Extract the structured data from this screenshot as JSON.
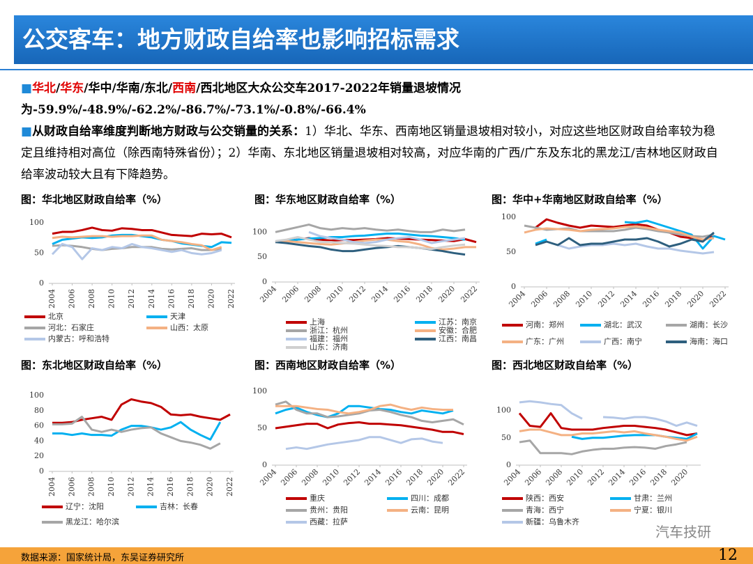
{
  "header": {
    "title": "公交客车：地方财政自给率也影响招标需求"
  },
  "bullets": [
    {
      "segments": [
        {
          "text": "华北",
          "color": "#e00000"
        },
        {
          "text": "/",
          "color": "#000000"
        },
        {
          "text": "华东",
          "color": "#e00000"
        },
        {
          "text": "/华中/华南/东北/",
          "color": "#000000"
        },
        {
          "text": "西南",
          "color": "#e00000"
        },
        {
          "text": "/西北地区大众公交车2017-2022年销量退坡情况为-59.9%/-48.9%/-62.2%/-86.7%/-73.1%/-0.8%/-66.4%",
          "color": "#000000"
        }
      ]
    },
    {
      "lead": "从财政自给率维度判断地方财政与公交销量的关系：",
      "text": "1）华北、华东、西南地区销量退坡相对较小，对应这些地区财政自给率较为稳定且维持相对高位（除西南特殊省份）；2）华南、东北地区销量退坡相对较高，对应华南的广西/广东及东北的黑龙江/吉林地区财政自给率波动较大且有下降趋势。"
    }
  ],
  "chart_data": [
    {
      "type": "line",
      "title": "图：华北地区财政自给率（%）",
      "x": [
        2004,
        2005,
        2006,
        2007,
        2008,
        2009,
        2010,
        2011,
        2012,
        2013,
        2014,
        2015,
        2016,
        2017,
        2018,
        2019,
        2020,
        2021,
        2022
      ],
      "xlim": [
        2004,
        2022
      ],
      "xticks": [
        2004,
        2006,
        2008,
        2010,
        2012,
        2014,
        2016,
        2018,
        2020,
        2022
      ],
      "ylim": [
        0,
        100
      ],
      "yticks": [
        0,
        50,
        100
      ],
      "series": [
        {
          "name": "北京",
          "color": "#c00000",
          "values": [
            82,
            85,
            85,
            88,
            92,
            88,
            87,
            91,
            90,
            88,
            88,
            84,
            80,
            79,
            78,
            82,
            81,
            82,
            76
          ]
        },
        {
          "name": "天津",
          "color": "#00b0f0",
          "values": [
            65,
            72,
            74,
            76,
            75,
            76,
            79,
            80,
            80,
            78,
            76,
            72,
            70,
            66,
            64,
            62,
            60,
            68,
            67
          ]
        },
        {
          "name": "河北：石家庄",
          "color": "#a6a6a6",
          "values": [
            62,
            63,
            62,
            60,
            57,
            55,
            57,
            58,
            60,
            60,
            60,
            57,
            56,
            57,
            58,
            55,
            55,
            57,
            null
          ]
        },
        {
          "name": "山西：太原",
          "color": "#f4b183",
          "values": [
            75,
            77,
            76,
            77,
            78,
            78,
            77,
            78,
            78,
            79,
            79,
            72,
            70,
            68,
            65,
            63,
            55,
            60,
            null
          ]
        },
        {
          "name": "内蒙古：呼和浩特",
          "color": "#b4c7e7",
          "values": [
            48,
            65,
            60,
            40,
            58,
            55,
            60,
            58,
            65,
            60,
            58,
            55,
            52,
            55,
            50,
            48,
            50,
            55,
            null
          ]
        }
      ]
    },
    {
      "type": "line",
      "title": "图：华东地区财政自给率（%）",
      "x": [
        2004,
        2005,
        2006,
        2007,
        2008,
        2009,
        2010,
        2011,
        2012,
        2013,
        2014,
        2015,
        2016,
        2017,
        2018,
        2019,
        2020,
        2021,
        2022
      ],
      "xlim": [
        2004,
        2022
      ],
      "xticks": [
        2004,
        2006,
        2008,
        2010,
        2012,
        2014,
        2016,
        2018,
        2020,
        2022
      ],
      "ylim": [
        0,
        120
      ],
      "yticks": [
        0,
        50,
        100
      ],
      "series": [
        {
          "name": "上海",
          "color": "#c00000",
          "values": [
            80,
            83,
            85,
            88,
            85,
            83,
            84,
            84,
            85,
            86,
            88,
            87,
            86,
            85,
            84,
            83,
            82,
            86,
            80
          ]
        },
        {
          "name": "江苏：南京",
          "color": "#00b0f0",
          "values": [
            80,
            82,
            85,
            87,
            88,
            90,
            90,
            92,
            93,
            95,
            97,
            97,
            95,
            93,
            92,
            90,
            88,
            85,
            null
          ]
        },
        {
          "name": "浙江：杭州",
          "color": "#a6a6a6",
          "values": [
            100,
            105,
            110,
            115,
            108,
            105,
            108,
            106,
            108,
            105,
            103,
            105,
            102,
            100,
            100,
            105,
            102,
            105,
            null
          ]
        },
        {
          "name": "安徽：合肥",
          "color": "#f4b183",
          "values": [
            80,
            82,
            80,
            78,
            76,
            75,
            77,
            80,
            83,
            85,
            85,
            82,
            80,
            75,
            68,
            65,
            67,
            70,
            70
          ]
        },
        {
          "name": "福建：福州",
          "color": "#b4c7e7",
          "values": [
            null,
            null,
            null,
            100,
            92,
            88,
            85,
            80,
            78,
            80,
            85,
            88,
            90,
            85,
            78,
            82,
            85,
            88,
            null
          ]
        },
        {
          "name": "江西：南昌",
          "color": "#2e5f7e",
          "values": [
            80,
            78,
            75,
            72,
            70,
            65,
            62,
            62,
            65,
            68,
            70,
            72,
            70,
            68,
            65,
            62,
            58,
            55,
            null
          ]
        },
        {
          "name": "山东：济南",
          "color": "#d0d0d0",
          "values": [
            82,
            85,
            90,
            85,
            80,
            80,
            78,
            77,
            75,
            73,
            72,
            70,
            70,
            68,
            66,
            70,
            73,
            75,
            null
          ]
        }
      ]
    },
    {
      "type": "line",
      "title": "图：华中+华南地区财政自给率（%）",
      "x": [
        2004,
        2005,
        2006,
        2007,
        2008,
        2009,
        2010,
        2011,
        2012,
        2013,
        2014,
        2015,
        2016,
        2017,
        2018,
        2019,
        2020,
        2021,
        2022
      ],
      "xlim": [
        2004,
        2022
      ],
      "xticks": [
        2004,
        2006,
        2008,
        2010,
        2012,
        2014,
        2016,
        2018,
        2020,
        2022
      ],
      "ylim": [
        0,
        100
      ],
      "yticks": [
        0,
        50,
        100
      ],
      "series": [
        {
          "name": "河南：郑州",
          "color": "#c00000",
          "values": [
            null,
            85,
            97,
            92,
            88,
            85,
            88,
            87,
            86,
            88,
            90,
            88,
            82,
            78,
            72,
            70,
            67,
            75,
            null
          ]
        },
        {
          "name": "湖北：武汉",
          "color": "#00b0f0",
          "values": [
            null,
            62,
            68,
            null,
            null,
            null,
            null,
            null,
            null,
            93,
            92,
            95,
            90,
            85,
            80,
            75,
            55,
            73,
            68
          ]
        },
        {
          "name": "湖南：长沙",
          "color": "#a6a6a6",
          "values": [
            88,
            85,
            82,
            83,
            84,
            80,
            80,
            80,
            80,
            82,
            85,
            83,
            80,
            78,
            75,
            73,
            72,
            75,
            null
          ]
        },
        {
          "name": "广东：广州",
          "color": "#f4b183",
          "values": [
            78,
            82,
            84,
            83,
            82,
            80,
            82,
            83,
            84,
            86,
            87,
            85,
            82,
            80,
            78,
            72,
            68,
            70,
            null
          ]
        },
        {
          "name": "广西：南宁",
          "color": "#b4c7e7",
          "values": [
            null,
            null,
            null,
            60,
            55,
            58,
            60,
            60,
            62,
            60,
            62,
            58,
            55,
            55,
            52,
            50,
            48,
            50,
            null
          ]
        },
        {
          "name": "海南：海口",
          "color": "#2e5f7e",
          "values": [
            null,
            60,
            65,
            60,
            70,
            60,
            62,
            62,
            65,
            68,
            68,
            70,
            65,
            58,
            62,
            68,
            65,
            78,
            null
          ]
        }
      ]
    },
    {
      "type": "line",
      "title": "图：东北地区财政自给率（%）",
      "x": [
        2004,
        2005,
        2006,
        2007,
        2008,
        2009,
        2010,
        2011,
        2012,
        2013,
        2014,
        2015,
        2016,
        2017,
        2018,
        2019,
        2020,
        2021,
        2022
      ],
      "xlim": [
        2004,
        2022
      ],
      "xticks": [
        2004,
        2006,
        2008,
        2010,
        2012,
        2014,
        2016,
        2018,
        2020,
        2022
      ],
      "ylim": [
        0,
        100
      ],
      "yticks": [
        0,
        20,
        40,
        60,
        80,
        100
      ],
      "series": [
        {
          "name": "辽宁：沈阳",
          "color": "#c00000",
          "values": [
            64,
            64,
            65,
            68,
            70,
            72,
            68,
            88,
            95,
            92,
            90,
            85,
            75,
            74,
            75,
            72,
            70,
            68,
            75
          ]
        },
        {
          "name": "吉林：长春",
          "color": "#00b0f0",
          "values": [
            50,
            50,
            48,
            50,
            48,
            48,
            47,
            55,
            60,
            60,
            58,
            55,
            58,
            65,
            55,
            48,
            42,
            65,
            null
          ]
        },
        {
          "name": "黑龙江：哈尔滨",
          "color": "#a6a6a6",
          "values": [
            62,
            62,
            63,
            72,
            55,
            52,
            55,
            52,
            55,
            57,
            58,
            50,
            45,
            40,
            38,
            35,
            30,
            37,
            null
          ]
        }
      ]
    },
    {
      "type": "line",
      "title": "图：西南地区财政自给率（%）",
      "x": [
        2004,
        2005,
        2006,
        2007,
        2008,
        2009,
        2010,
        2011,
        2012,
        2013,
        2014,
        2015,
        2016,
        2017,
        2018,
        2019,
        2020,
        2021,
        2022
      ],
      "xlim": [
        2004,
        2022
      ],
      "xticks": [
        2004,
        2006,
        2008,
        2010,
        2012,
        2014,
        2016,
        2018,
        2020,
        2022
      ],
      "ylim": [
        0,
        100
      ],
      "yticks": [
        0,
        50,
        100
      ],
      "series": [
        {
          "name": "重庆",
          "color": "#c00000",
          "values": [
            50,
            52,
            54,
            56,
            56,
            50,
            55,
            57,
            58,
            56,
            56,
            55,
            54,
            52,
            50,
            48,
            45,
            45,
            42
          ]
        },
        {
          "name": "四川：成都",
          "color": "#00b0f0",
          "values": [
            70,
            75,
            78,
            72,
            68,
            65,
            70,
            80,
            80,
            78,
            76,
            75,
            72,
            70,
            74,
            72,
            70,
            74,
            null
          ]
        },
        {
          "name": "贵州：贵阳",
          "color": "#a6a6a6",
          "values": [
            82,
            86,
            75,
            70,
            70,
            65,
            66,
            68,
            70,
            74,
            75,
            72,
            68,
            65,
            60,
            58,
            60,
            62,
            55
          ]
        },
        {
          "name": "云南：昆明",
          "color": "#f4b183",
          "values": [
            80,
            80,
            80,
            78,
            76,
            75,
            72,
            70,
            72,
            75,
            80,
            82,
            78,
            75,
            78,
            76,
            75,
            75,
            null
          ]
        },
        {
          "name": "西藏：拉萨",
          "color": "#b4c7e7",
          "values": [
            null,
            22,
            24,
            22,
            25,
            28,
            30,
            32,
            34,
            38,
            38,
            34,
            30,
            35,
            36,
            32,
            30,
            null,
            null
          ]
        }
      ]
    },
    {
      "type": "line",
      "title": "图：西北地区财政自给率（%）",
      "x": [
        2004,
        2005,
        2006,
        2007,
        2008,
        2009,
        2010,
        2011,
        2012,
        2013,
        2014,
        2015,
        2016,
        2017,
        2018,
        2019,
        2020,
        2021
      ],
      "xlim": [
        2004,
        2021
      ],
      "xticks": [
        2004,
        2006,
        2008,
        2010,
        2012,
        2014,
        2016,
        2018,
        2020
      ],
      "ylim": [
        0,
        125
      ],
      "yticks": [
        0,
        50,
        100
      ],
      "series": [
        {
          "name": "陕西：西安",
          "color": "#c00000",
          "values": [
            95,
            72,
            70,
            95,
            68,
            65,
            65,
            65,
            68,
            70,
            72,
            72,
            70,
            68,
            65,
            60,
            55,
            58
          ]
        },
        {
          "name": "甘肃：兰州",
          "color": "#00b0f0",
          "values": [
            null,
            null,
            null,
            null,
            null,
            52,
            48,
            50,
            50,
            52,
            54,
            55,
            55,
            55,
            52,
            50,
            48,
            58
          ]
        },
        {
          "name": "青海：西宁",
          "color": "#a6a6a6",
          "values": [
            42,
            45,
            22,
            22,
            22,
            20,
            25,
            28,
            30,
            30,
            32,
            33,
            32,
            30,
            35,
            38,
            42,
            null
          ]
        },
        {
          "name": "宁夏：银川",
          "color": "#f4b183",
          "values": [
            62,
            65,
            65,
            60,
            55,
            55,
            58,
            58,
            60,
            62,
            60,
            62,
            58,
            55,
            52,
            48,
            45,
            52
          ]
        },
        {
          "name": "新疆：乌鲁木齐",
          "color": "#b4c7e7",
          "values": [
            115,
            117,
            115,
            112,
            110,
            95,
            85,
            null,
            88,
            87,
            85,
            88,
            88,
            85,
            80,
            72,
            78,
            72
          ]
        }
      ]
    }
  ],
  "footer": {
    "source": "数据来源：国家统计局，东吴证券研究所",
    "page": "12",
    "watermark": "汽车技研"
  }
}
